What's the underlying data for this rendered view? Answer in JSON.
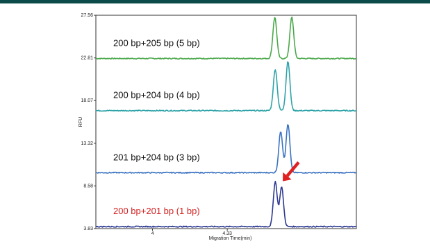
{
  "header_bar_color": "#0d4a4a",
  "chart_data": {
    "type": "line",
    "title": "",
    "xlabel": "Migration Time(min)",
    "ylabel": "RFU",
    "xlim": [
      3.75,
      4.9
    ],
    "ylim": [
      3.83,
      27.56
    ],
    "x_ticks": [
      {
        "value": 4.0,
        "label": "4"
      },
      {
        "value": 4.33,
        "label": "4.33"
      }
    ],
    "y_ticks": [
      {
        "value": 3.83,
        "label": "3.83"
      },
      {
        "value": 8.58,
        "label": "8.58"
      },
      {
        "value": 13.32,
        "label": "13.32"
      },
      {
        "value": 18.07,
        "label": "18.07"
      },
      {
        "value": 22.81,
        "label": "22.81"
      },
      {
        "value": 27.56,
        "label": "27.56"
      }
    ],
    "grid": false,
    "series": [
      {
        "label": "200 bp+205 bp (5 bp)",
        "color": "#4aa84a",
        "label_color": "#111111",
        "baseline": 22.75,
        "peaks": [
          {
            "x": 4.54,
            "height": 4.6
          },
          {
            "x": 4.615,
            "height": 4.6
          }
        ]
      },
      {
        "label": "200 bp+204 bp (4 bp)",
        "color": "#2ea3a8",
        "label_color": "#111111",
        "baseline": 16.95,
        "peaks": [
          {
            "x": 4.542,
            "height": 4.6
          },
          {
            "x": 4.598,
            "height": 5.5
          }
        ]
      },
      {
        "label": "201 bp+204 bp (3 bp)",
        "color": "#3a72c0",
        "label_color": "#111111",
        "baseline": 10.05,
        "peaks": [
          {
            "x": 4.566,
            "height": 4.6
          },
          {
            "x": 4.598,
            "height": 5.4
          }
        ]
      },
      {
        "label": "200 bp+201 bp (1 bp)",
        "color": "#2b3790",
        "label_color": "#d42020",
        "baseline": 4.05,
        "peaks": [
          {
            "x": 4.542,
            "height": 5.0
          },
          {
            "x": 4.57,
            "height": 4.4
          }
        ]
      }
    ],
    "annotations": [
      {
        "type": "arrow",
        "color": "#e02020",
        "points_to": {
          "x": 4.575,
          "y": 9.1
        },
        "from": {
          "x": 4.645,
          "y": 11.2
        }
      }
    ]
  }
}
